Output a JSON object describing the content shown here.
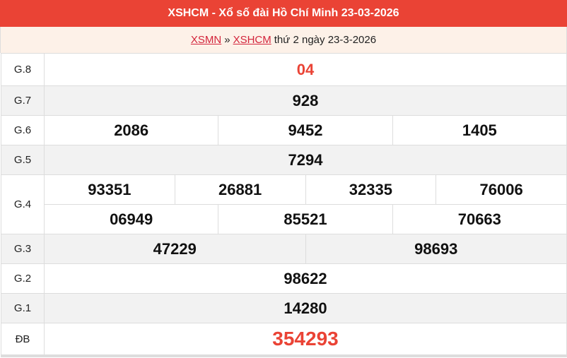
{
  "header": {
    "title": "XSHCM - Xổ số đài Hồ Chí Minh 23-03-2026"
  },
  "breadcrumb": {
    "link1": "XSMN",
    "sep": "»",
    "link2": "XSHCM",
    "text": "thứ 2 ngày 23-3-2026"
  },
  "colors": {
    "accent": "#ea4335",
    "subheader_bg": "#fdf1e8",
    "alt_row": "#f2f2f2"
  },
  "prizes": [
    {
      "label": "G.8",
      "lines": [
        [
          "04"
        ]
      ]
    },
    {
      "label": "G.7",
      "lines": [
        [
          "928"
        ]
      ]
    },
    {
      "label": "G.6",
      "lines": [
        [
          "2086",
          "9452",
          "1405"
        ]
      ]
    },
    {
      "label": "G.5",
      "lines": [
        [
          "7294"
        ]
      ]
    },
    {
      "label": "G.4",
      "lines": [
        [
          "93351",
          "26881",
          "32335",
          "76006"
        ],
        [
          "06949",
          "85521",
          "70663"
        ]
      ]
    },
    {
      "label": "G.3",
      "lines": [
        [
          "47229",
          "98693"
        ]
      ]
    },
    {
      "label": "G.2",
      "lines": [
        [
          "98622"
        ]
      ]
    },
    {
      "label": "G.1",
      "lines": [
        [
          "14280"
        ]
      ]
    },
    {
      "label": "ĐB",
      "lines": [
        [
          "354293"
        ]
      ]
    }
  ]
}
